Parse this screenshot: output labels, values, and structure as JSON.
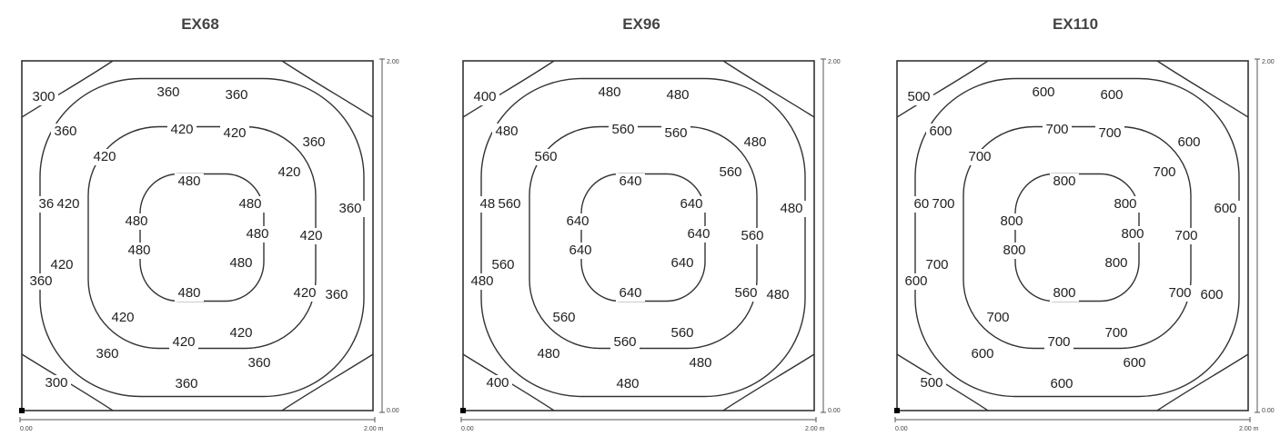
{
  "panels": [
    {
      "title": "EX68",
      "axis": {
        "origin": "0.00",
        "x_end": "2.00 m",
        "y_origin": "0.00",
        "y_end": "2.00 m"
      },
      "levels": [
        "300",
        "360",
        "420",
        "480"
      ]
    },
    {
      "title": "EX96",
      "axis": {
        "origin": "0.00",
        "x_end": "2.00 m",
        "y_origin": "0.00",
        "y_end": "2.00 m"
      },
      "levels": [
        "400",
        "480",
        "560",
        "640"
      ]
    },
    {
      "title": "EX110",
      "axis": {
        "origin": "0.00",
        "x_end": "2.00 m",
        "y_origin": "0.00",
        "y_end": "2.00 m"
      },
      "levels": [
        "500",
        "600",
        "700",
        "800"
      ]
    }
  ]
}
